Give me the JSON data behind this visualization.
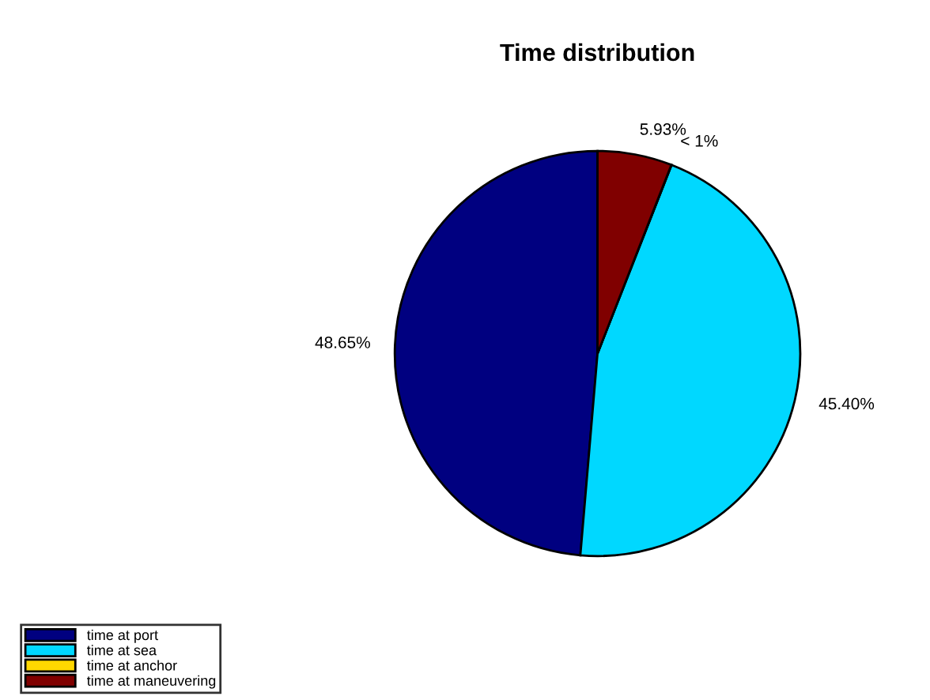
{
  "chart_data": {
    "type": "pie",
    "title": "Time distribution",
    "categories": [
      "time at port",
      "time at sea",
      "time at anchor",
      "time at maneuvering"
    ],
    "values": [
      48.65,
      45.4,
      0.02,
      5.93
    ],
    "colors": [
      "#000080",
      "#00d8ff",
      "#ffd700",
      "#800000"
    ],
    "value_labels": [
      "48.65%",
      "45.40%",
      "< 1%",
      "5.93%"
    ],
    "legend": "bottom left"
  }
}
